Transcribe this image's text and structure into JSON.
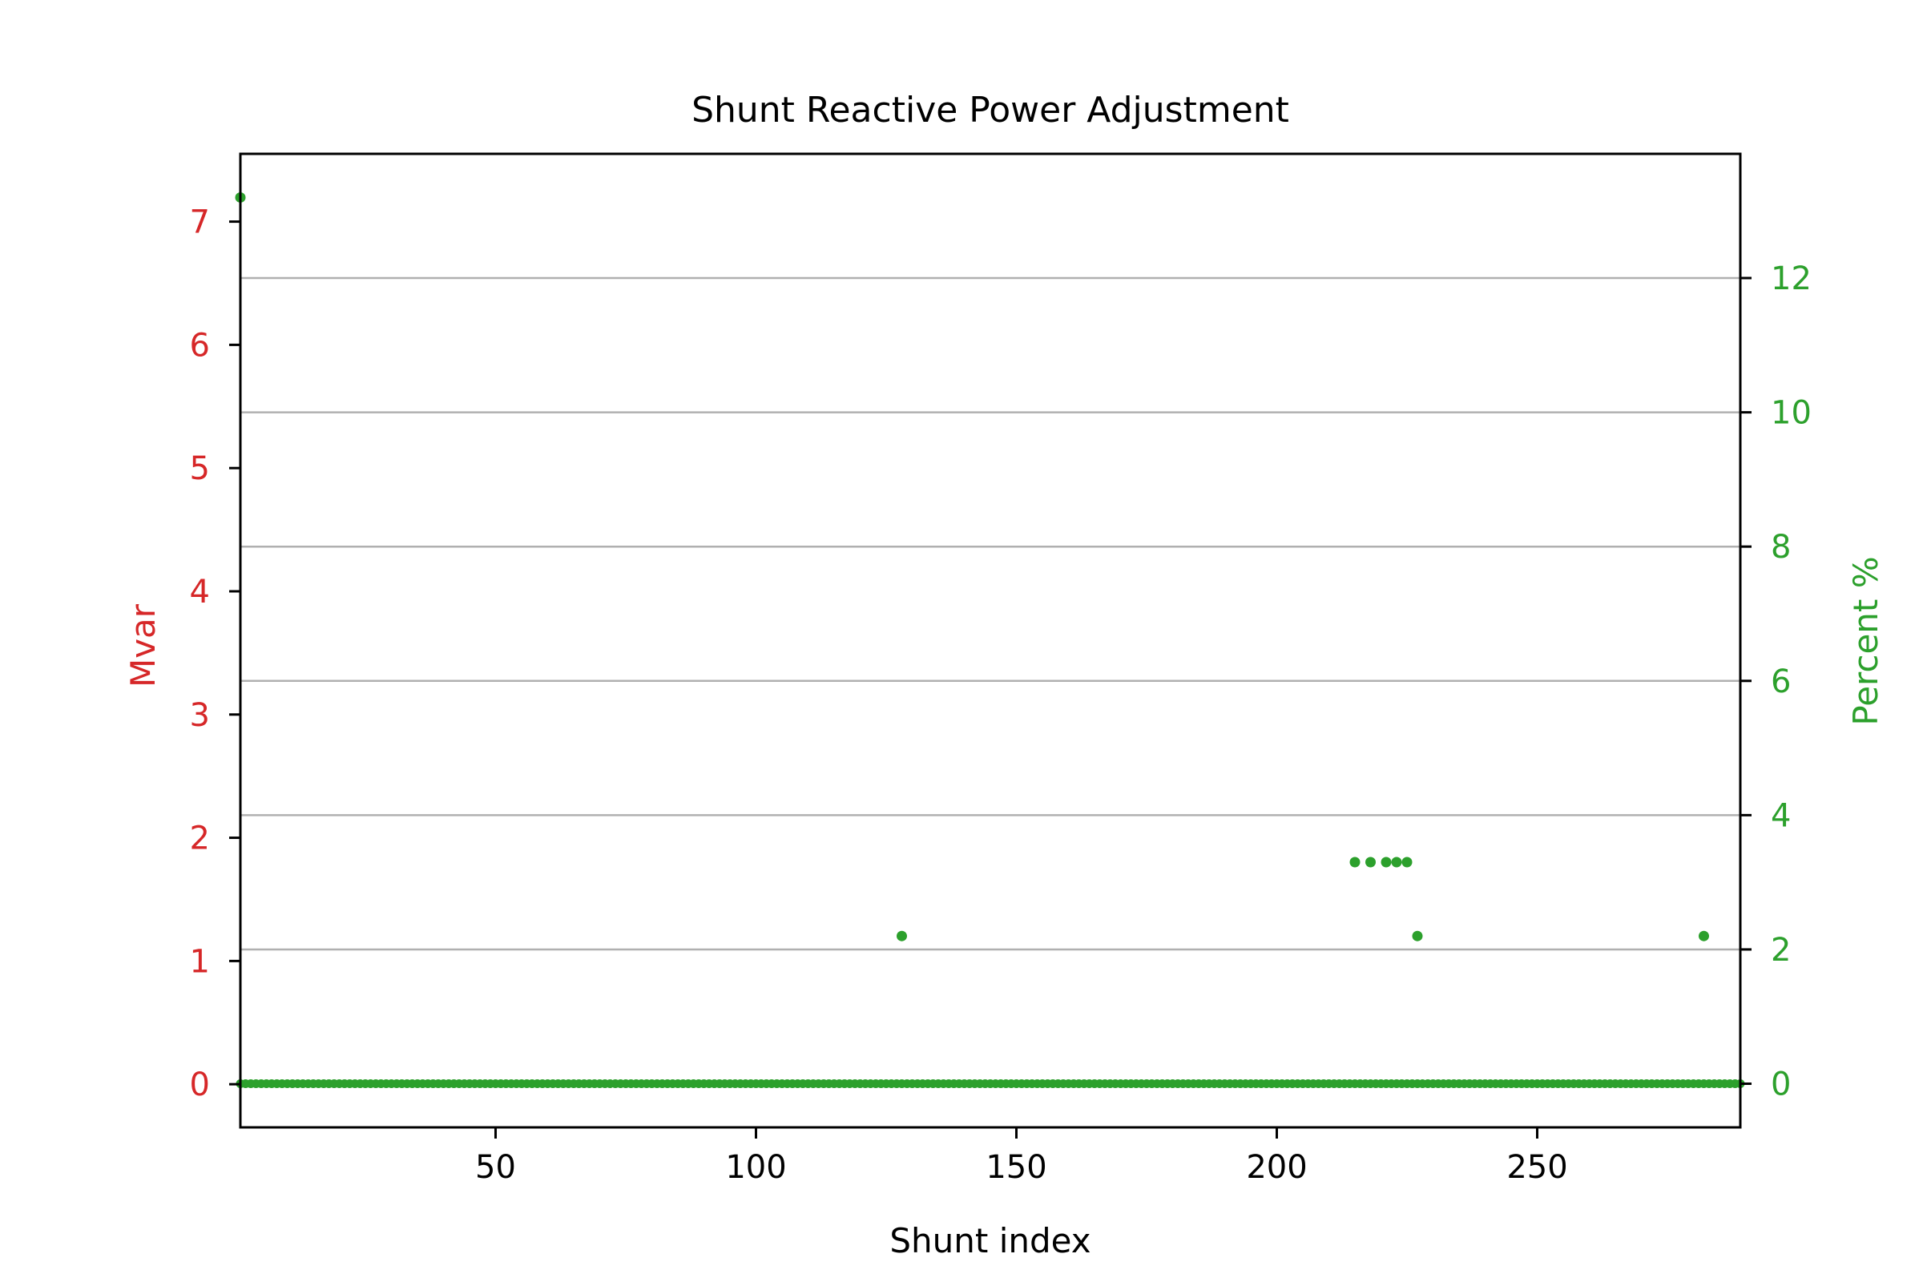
{
  "chart_data": {
    "type": "scatter",
    "title": "Shunt Reactive Power Adjustment",
    "xlabel": "Shunt index",
    "ylabel": "Mvar",
    "y2label": "Percent %",
    "xlim": [
      1,
      289
    ],
    "ylim": [
      -0.35,
      7.55
    ],
    "y2lim": [
      -0.65,
      13.85
    ],
    "xticks": [
      50,
      100,
      150,
      200,
      250
    ],
    "yticks": [
      0,
      1,
      2,
      3,
      4,
      5,
      6,
      7
    ],
    "y2ticks": [
      0,
      2,
      4,
      6,
      8,
      10,
      12
    ],
    "grid": "horizontal lines at right-axis ticks",
    "colors": {
      "left_axis": "#d62728",
      "right_axis": "#2ca02c",
      "series": "#2ca02c",
      "grid": "#b0b0b0"
    },
    "baseline_range": [
      1,
      289
    ],
    "series": [
      {
        "axis": "right",
        "points": [
          [
            1,
            13.2
          ],
          [
            128,
            2.2
          ],
          [
            215,
            3.3
          ],
          [
            218,
            3.3
          ],
          [
            221,
            3.3
          ],
          [
            223,
            3.3
          ],
          [
            225,
            3.3
          ],
          [
            227,
            2.2
          ],
          [
            282,
            2.2
          ]
        ]
      }
    ]
  }
}
